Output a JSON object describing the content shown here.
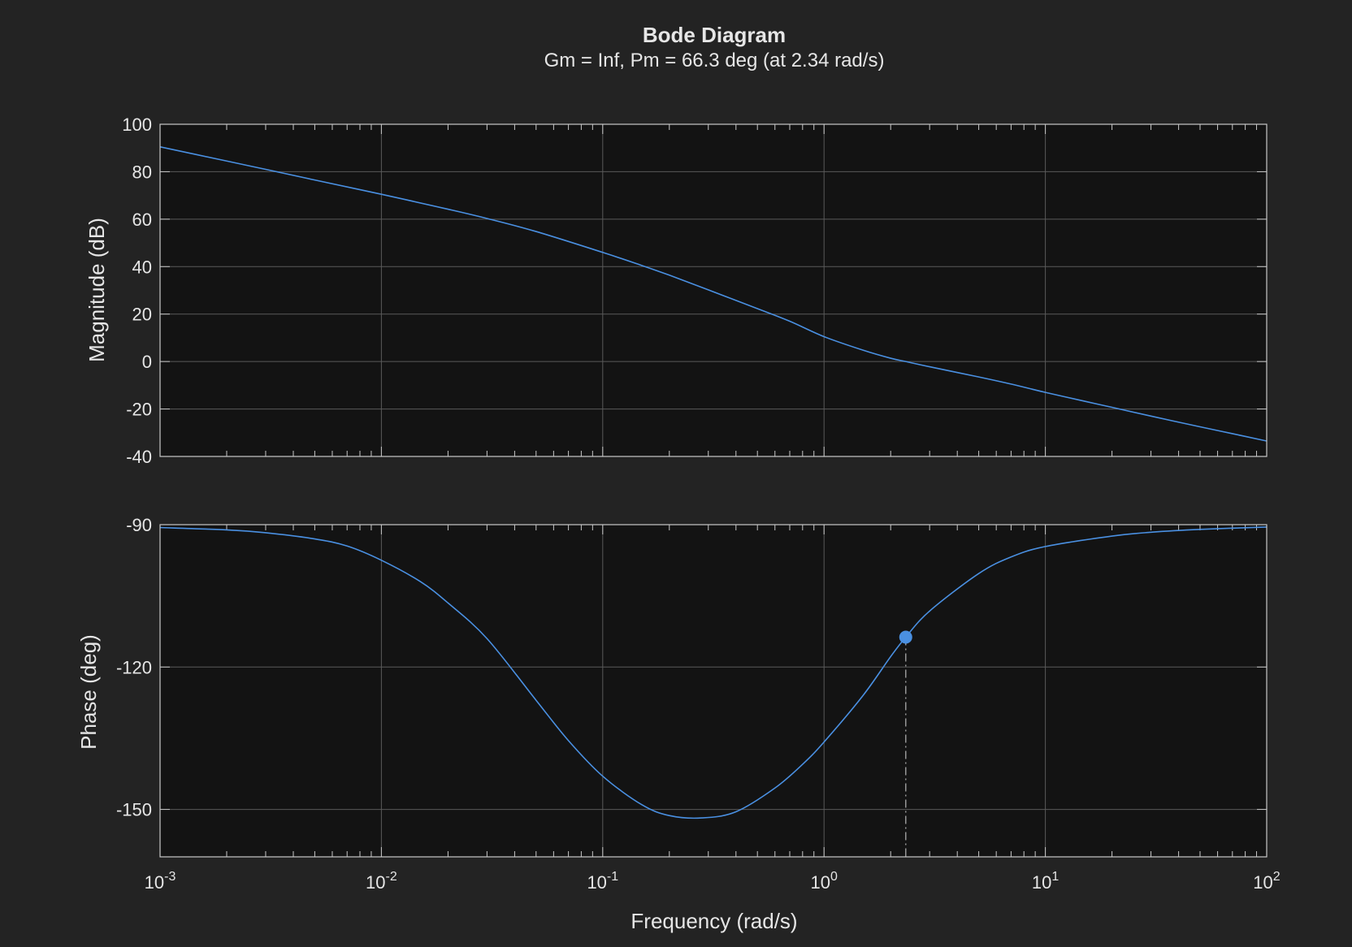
{
  "chart_data": {
    "type": "line",
    "title": "Bode Diagram",
    "subtitle": "Gm = Inf,  Pm = 66.3 deg (at 2.34 rad/s)",
    "xlabel": "Frequency (rad/s)",
    "xscale": "log",
    "xlim": [
      0.001,
      100
    ],
    "x_tick_labels": [
      {
        "base": "10",
        "exp": "-3"
      },
      {
        "base": "10",
        "exp": "-2"
      },
      {
        "base": "10",
        "exp": "-1"
      },
      {
        "base": "10",
        "exp": "0"
      },
      {
        "base": "10",
        "exp": "1"
      },
      {
        "base": "10",
        "exp": "2"
      }
    ],
    "grid": true,
    "colors": {
      "background": "#232323",
      "axes_background": "#131313",
      "axes_edge": "#c8c8c8",
      "grid": "#5a5a5a",
      "line": "#4a90e2",
      "marker": "#4a90e2",
      "margin_line": "#a0a0a0"
    },
    "panels": [
      {
        "name": "magnitude",
        "ylabel": "Magnitude (dB)",
        "ylim": [
          -40,
          100
        ],
        "yticks": [
          -40,
          -20,
          0,
          20,
          40,
          60,
          80,
          100
        ],
        "ytick_labels": [
          "-40",
          "-20",
          "0",
          "20",
          "40",
          "60",
          "80",
          "100"
        ],
        "series": [
          {
            "x": [
              0.001,
              0.002,
              0.003,
              0.005,
              0.01,
              0.02,
              0.03,
              0.05,
              0.1,
              0.15,
              0.2,
              0.3,
              0.5,
              0.7,
              1,
              1.5,
              2,
              2.34,
              3,
              5,
              7,
              10,
              15,
              20,
              30,
              50,
              70,
              100
            ],
            "y": [
              90.5,
              84.5,
              81,
              76.5,
              70.5,
              64.2,
              60.3,
              54.8,
              46,
              40.5,
              36.4,
              30.2,
              22.3,
              17,
              10.5,
              4.8,
              1.4,
              0,
              -2.2,
              -6.5,
              -9.5,
              -13,
              -16.7,
              -19.3,
              -23,
              -27.5,
              -30.4,
              -33.5
            ]
          }
        ],
        "annotations": []
      },
      {
        "name": "phase",
        "ylabel": "Phase (deg)",
        "ylim": [
          -160,
          -90
        ],
        "yticks": [
          -150,
          -120,
          -90
        ],
        "ytick_labels": [
          "-150",
          "-120",
          "-90"
        ],
        "series": [
          {
            "x": [
              0.001,
              0.002,
              0.003,
              0.005,
              0.007,
              0.01,
              0.015,
              0.02,
              0.03,
              0.05,
              0.07,
              0.1,
              0.15,
              0.2,
              0.28,
              0.4,
              0.6,
              0.8,
              1,
              1.5,
              2,
              2.34,
              3,
              5,
              7,
              10,
              20,
              30,
              50,
              100
            ],
            "y": [
              -90.6,
              -91.1,
              -91.7,
              -93,
              -94.5,
              -97.5,
              -102,
              -106.5,
              -114,
              -127,
              -135.5,
              -143,
              -149,
              -151.3,
              -151.8,
              -150.5,
              -145.5,
              -140.5,
              -135.8,
              -126,
              -117.8,
              -113.7,
              -108.2,
              -100.3,
              -96.8,
              -94.6,
              -92.4,
              -91.6,
              -91,
              -90.5
            ]
          }
        ],
        "annotations": [
          {
            "type": "marker",
            "x": 2.34,
            "y": -113.7
          },
          {
            "type": "dash-dot-line",
            "x": 2.34,
            "y_from": -113.7,
            "y_to": -160
          }
        ]
      }
    ]
  }
}
